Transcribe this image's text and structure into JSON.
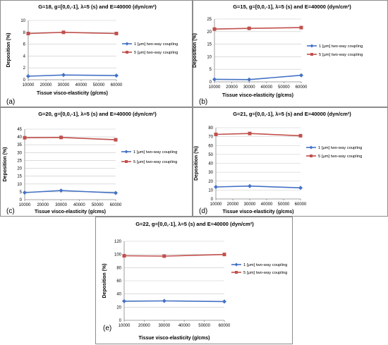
{
  "legend": {
    "series1": "1 [μm] two-way coupling",
    "series2": "5 [μm] two-way coupling"
  },
  "colors": {
    "series1": "#4472c4",
    "series2": "#c0504d"
  },
  "chart_data": [
    {
      "type": "line",
      "panel_label": "(a)",
      "title": "G=18, g=[0,0,-1],  λ=5 (s) and E=40000 (dyn/cm²)",
      "xlabel": "Tissue visco-elasticity (g/cms)",
      "ylabel": "Deposition (%)",
      "x": [
        10000,
        30000,
        60000
      ],
      "xticks": [
        10000,
        20000,
        30000,
        40000,
        50000,
        60000
      ],
      "xlim": [
        10000,
        60000
      ],
      "ylim": [
        0,
        10
      ],
      "yticks": [
        0,
        2,
        4,
        6,
        8,
        10
      ],
      "grid": true,
      "legend_position": "right",
      "series": [
        {
          "name": "1 [μm] two-way coupling",
          "values": [
            0.6,
            0.8,
            0.7
          ]
        },
        {
          "name": "5 [μm] two-way coupling",
          "values": [
            7.8,
            8.0,
            7.8
          ]
        }
      ]
    },
    {
      "type": "line",
      "panel_label": "(b)",
      "title": "G=15, g=[0,0,-1],  λ=5 (s) and E=40000 (dyn/cm²)",
      "xlabel": "Tissue visco-elasticity (g/cms)",
      "ylabel": "Deposition (%)",
      "x": [
        10000,
        30000,
        60000
      ],
      "xticks": [
        10000,
        20000,
        30000,
        40000,
        50000,
        60000
      ],
      "xlim": [
        10000,
        60000
      ],
      "ylim": [
        0,
        25
      ],
      "yticks": [
        0,
        5,
        10,
        15,
        20,
        25
      ],
      "grid": true,
      "legend_position": "right",
      "series": [
        {
          "name": "1 [μm] two-way coupling",
          "values": [
            1.0,
            0.9,
            2.6
          ]
        },
        {
          "name": "5 [μm] two-way coupling",
          "values": [
            21.0,
            21.3,
            21.6
          ]
        }
      ]
    },
    {
      "type": "line",
      "panel_label": "(c)",
      "title": "G=20, g=[0,0,-1],  λ=5 (s) and E=40000 (dyn/cm²)",
      "xlabel": "Tissue visco-elasticity (g/cms)",
      "ylabel": "Deposition (%)",
      "x": [
        10000,
        30000,
        60000
      ],
      "xticks": [
        10000,
        20000,
        30000,
        40000,
        50000,
        60000
      ],
      "xlim": [
        10000,
        60000
      ],
      "ylim": [
        0,
        45
      ],
      "yticks": [
        0,
        5,
        10,
        15,
        20,
        25,
        30,
        35,
        40,
        45
      ],
      "grid": true,
      "legend_position": "right",
      "series": [
        {
          "name": "1 [μm] two-way coupling",
          "values": [
            4.5,
            5.8,
            4.3
          ]
        },
        {
          "name": "5 [μm] two-way coupling",
          "values": [
            39.5,
            39.7,
            38.2
          ]
        }
      ]
    },
    {
      "type": "line",
      "panel_label": "(d)",
      "title": "G=21, g=[0,0,-1],  λ=5 (s) and E=40000 (dyn/cm²)",
      "xlabel": "Tissue visco-elasticity (g/cms)",
      "ylabel": "Deposition (%)",
      "x": [
        10000,
        30000,
        60000
      ],
      "xticks": [
        10000,
        20000,
        30000,
        40000,
        50000,
        60000
      ],
      "xlim": [
        10000,
        60000
      ],
      "ylim": [
        0,
        80
      ],
      "yticks": [
        0,
        10,
        20,
        30,
        40,
        50,
        60,
        70,
        80
      ],
      "grid": true,
      "legend_position": "right",
      "series": [
        {
          "name": "1 [μm] two-way coupling",
          "values": [
            13.5,
            14.5,
            12.5
          ]
        },
        {
          "name": "5 [μm] two-way coupling",
          "values": [
            72.5,
            73.5,
            71.0
          ]
        }
      ]
    },
    {
      "type": "line",
      "panel_label": "(e)",
      "title": "G=22, g=[0,0,-1],  λ=5 (s) and E=40000 (dyn/cm²)",
      "xlabel": "Tissue visco-elasticity (g/cms)",
      "ylabel": "Deposition (%)",
      "x": [
        10000,
        30000,
        60000
      ],
      "xticks": [
        10000,
        20000,
        30000,
        40000,
        50000,
        60000
      ],
      "xlim": [
        10000,
        60000
      ],
      "ylim": [
        0,
        120
      ],
      "yticks": [
        0,
        20,
        40,
        60,
        80,
        100,
        120
      ],
      "grid": true,
      "legend_position": "right",
      "series": [
        {
          "name": "1 [μm] two-way coupling",
          "values": [
            29,
            29.5,
            28.5
          ]
        },
        {
          "name": "5 [μm] two-way coupling",
          "values": [
            98,
            97.5,
            100
          ]
        }
      ]
    }
  ]
}
